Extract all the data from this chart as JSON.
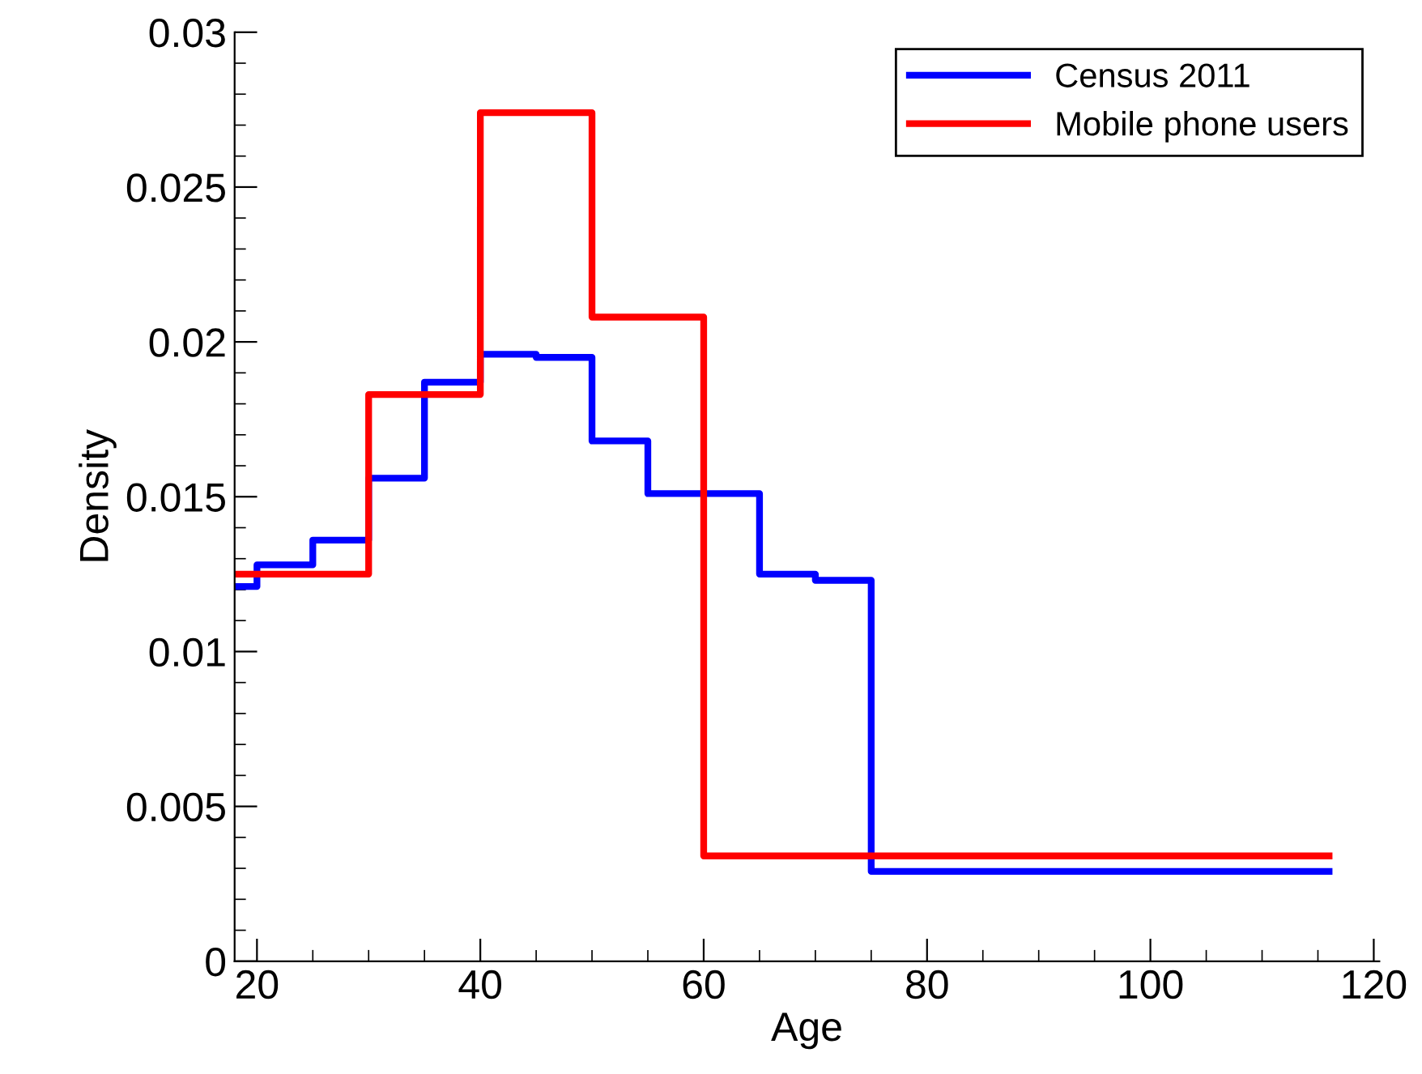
{
  "chart_data": {
    "type": "step",
    "xlabel": "Age",
    "ylabel": "Density",
    "xlim": [
      18,
      120.5
    ],
    "xticks": [
      20,
      40,
      60,
      80,
      100,
      120
    ],
    "ylim": [
      0,
      0.03
    ],
    "yticks": [
      0,
      0.005,
      0.01,
      0.015,
      0.02,
      0.025,
      0.03
    ],
    "grid": false,
    "legend": "top right",
    "series": [
      {
        "name": "Census 2011",
        "color": "#0000ff",
        "x": [
          18,
          20,
          25,
          30,
          35,
          40,
          45,
          50,
          55,
          60,
          65,
          70,
          75,
          116
        ],
        "values": [
          0.0121,
          0.0128,
          0.0136,
          0.0156,
          0.0187,
          0.0196,
          0.0195,
          0.0168,
          0.0151,
          0.0151,
          0.0125,
          0.0123,
          0.0029,
          0.0029
        ]
      },
      {
        "name": "Mobile phone users",
        "color": "#ff0000",
        "x": [
          18,
          30,
          40,
          50,
          60,
          116
        ],
        "values": [
          0.0125,
          0.0183,
          0.0274,
          0.0208,
          0.0034,
          0.0034
        ]
      }
    ]
  }
}
